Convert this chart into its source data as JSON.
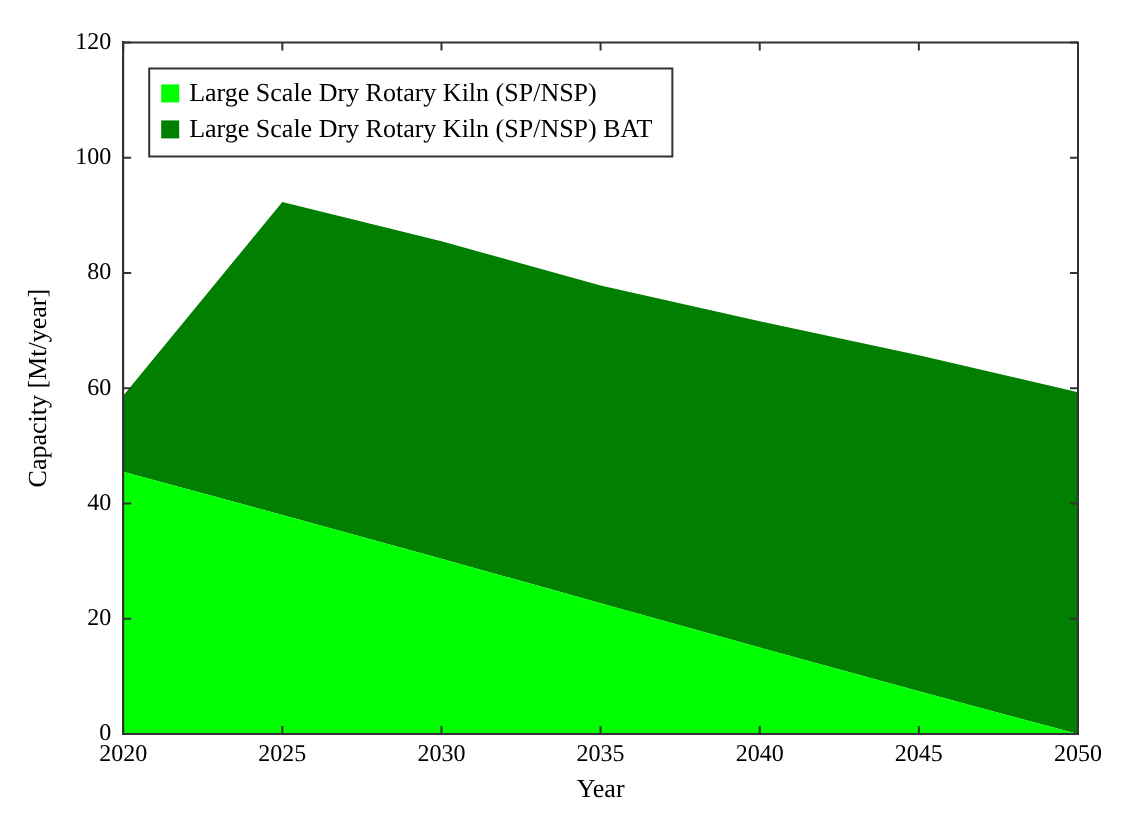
{
  "chart_data": {
    "type": "area",
    "xlabel": "Year",
    "ylabel": "Capacity [Mt/year]",
    "x": [
      2020,
      2025,
      2030,
      2035,
      2040,
      2045,
      2050
    ],
    "stacked": true,
    "series": [
      {
        "name": "Large Scale Dry Rotary Kiln (SP/NSP)",
        "color": "#00ff00",
        "values": [
          45.5,
          38,
          30.4,
          22.7,
          15,
          7.4,
          0
        ]
      },
      {
        "name": "Large Scale Dry Rotary Kiln (SP/NSP) BAT",
        "color": "#007f00",
        "values": [
          13.2,
          54.3,
          55.1,
          55.1,
          56.6,
          58.3,
          59.3
        ]
      }
    ],
    "xlim": [
      2020,
      2050
    ],
    "xticks": [
      2020,
      2025,
      2030,
      2035,
      2040,
      2045,
      2050
    ],
    "ylim": [
      0,
      120
    ],
    "yticks": [
      0,
      20,
      40,
      60,
      80,
      100,
      120
    ],
    "grid": false,
    "legend": "top left"
  }
}
